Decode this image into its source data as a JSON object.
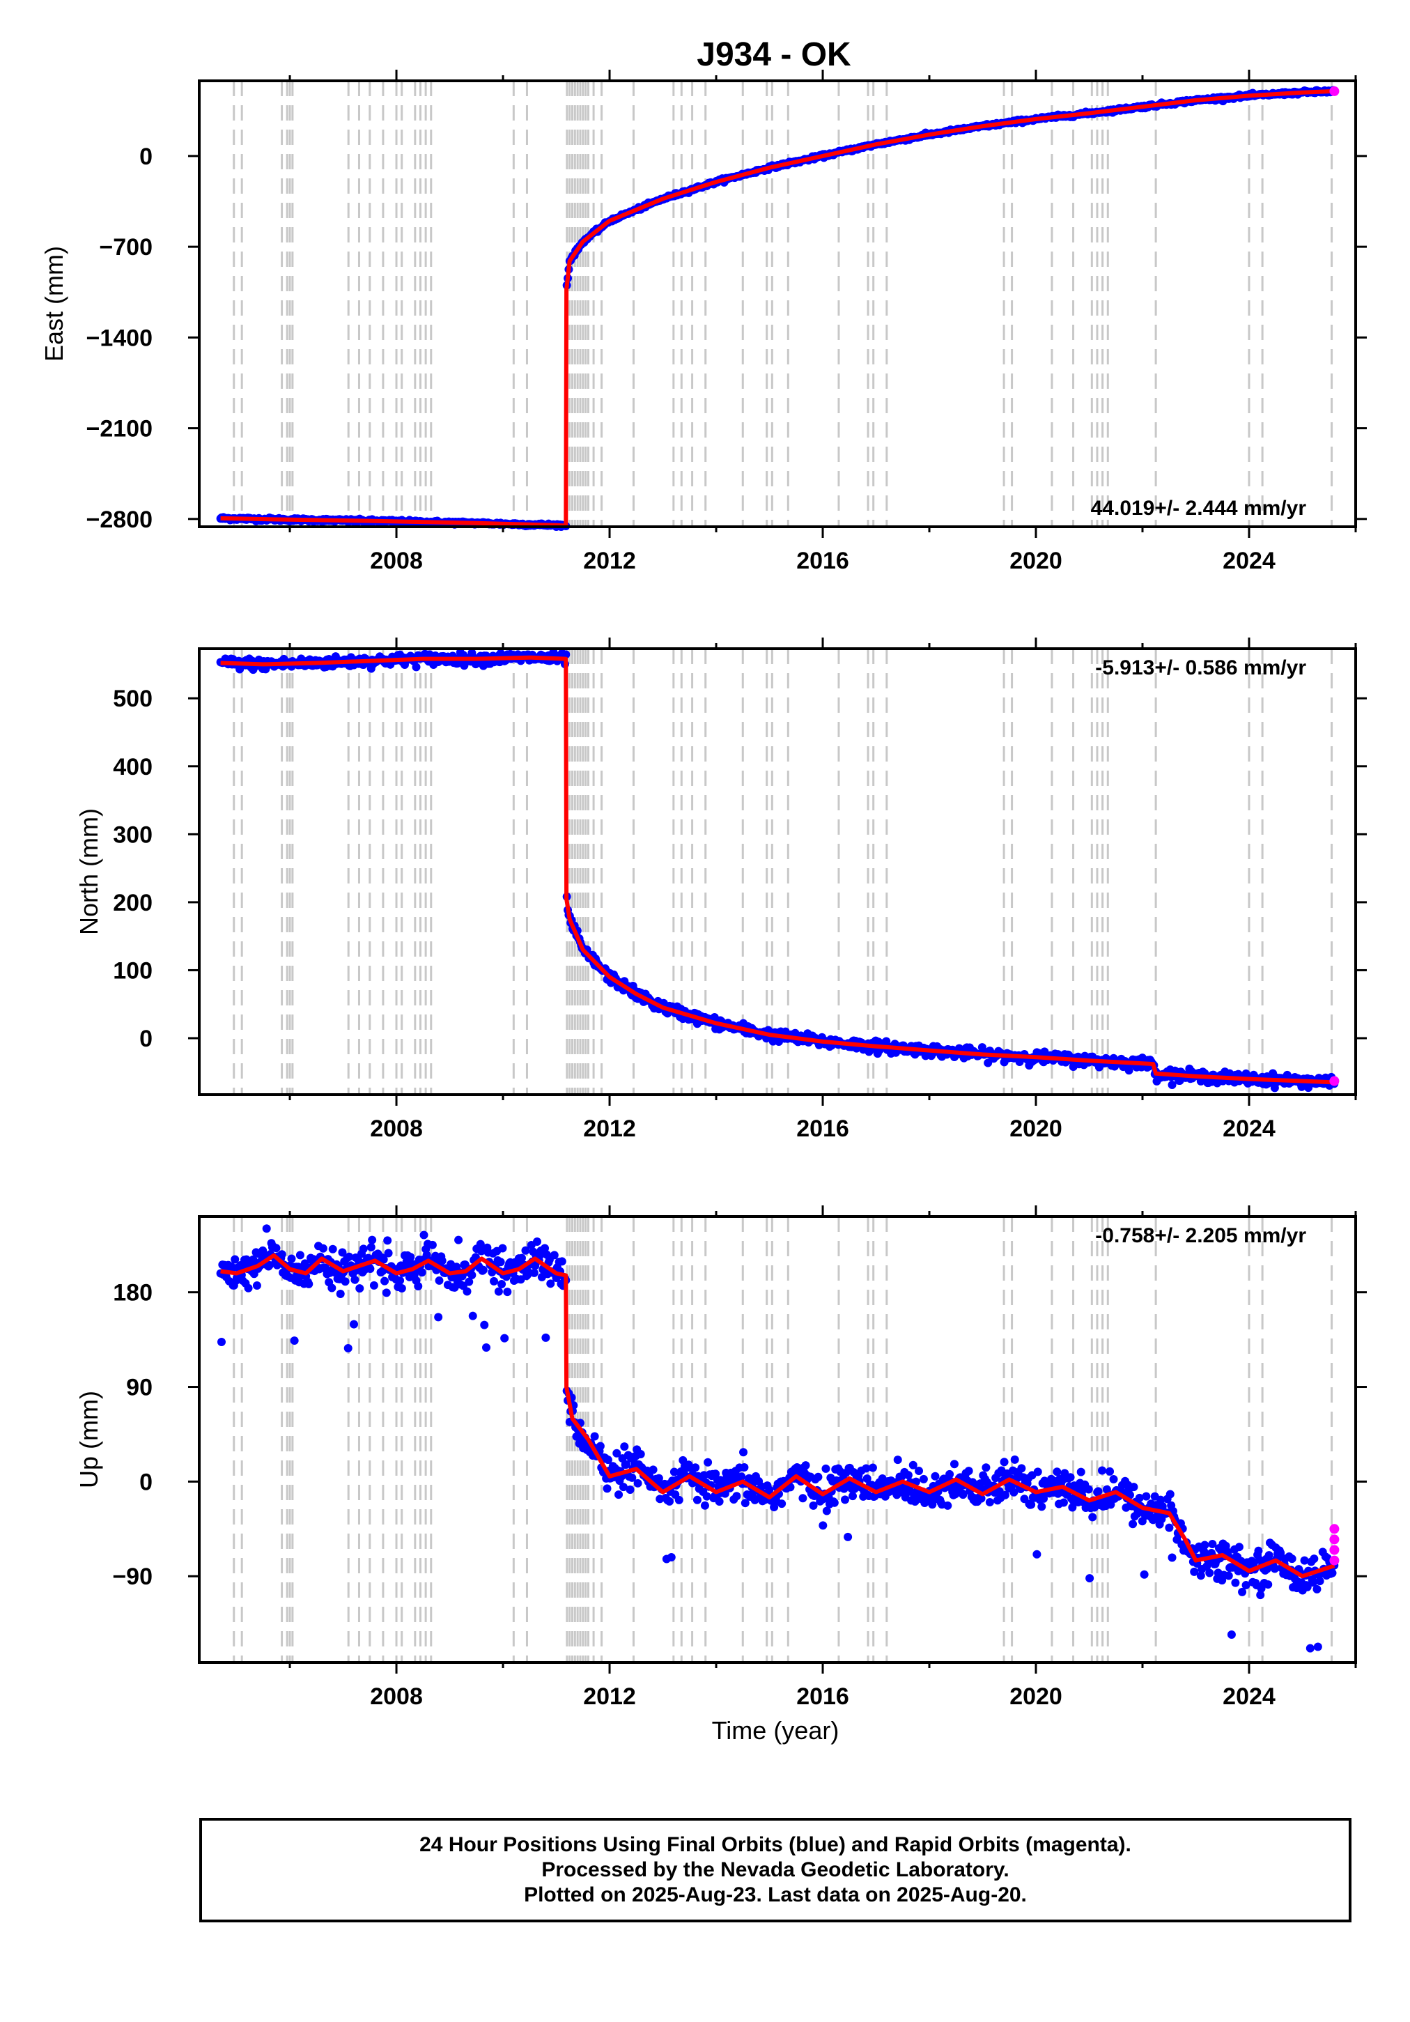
{
  "title": "J934 - OK",
  "x_axis_title": "Time (year)",
  "footer": {
    "line1": "24 Hour Positions Using Final Orbits (blue) and Rapid Orbits (magenta).",
    "line2": "Processed by the Nevada Geodetic Laboratory.",
    "line3": "Plotted on 2025-Aug-23. Last data on 2025-Aug-20."
  },
  "colors": {
    "final_orbits": "#0000ff",
    "rapid_orbits": "#ff00ff",
    "model": "#ff0000",
    "event_lines": "#c8c8c8"
  },
  "chart_data": [
    {
      "type": "scatter",
      "panel": "east",
      "ylabel": "East (mm)",
      "xlabel": "",
      "xlim": [
        2004.3,
        2026.0
      ],
      "ylim": [
        -2860,
        580
      ],
      "x_ticks": [
        2008,
        2012,
        2016,
        2020,
        2024
      ],
      "y_ticks": [
        0,
        -700,
        -1400,
        -2100,
        -2800
      ],
      "y_tick_labels": [
        "0",
        "−700",
        "−1400",
        "−2100",
        "−2800"
      ],
      "grid": false,
      "rate_annotation": "44.019+/- 2.444 mm/yr",
      "event_lines": [
        2004.95,
        2005.1,
        2005.85,
        2005.95,
        2006.0,
        2006.05,
        2007.1,
        2007.3,
        2007.5,
        2007.75,
        2008.0,
        2008.1,
        2008.35,
        2008.45,
        2008.55,
        2008.65,
        2010.2,
        2010.45,
        2011.2,
        2011.25,
        2011.3,
        2011.35,
        2011.4,
        2011.45,
        2011.5,
        2011.55,
        2011.6,
        2011.7,
        2011.85,
        2012.45,
        2013.2,
        2013.35,
        2013.55,
        2013.8,
        2014.5,
        2014.95,
        2015.05,
        2015.35,
        2016.3,
        2016.85,
        2016.95,
        2017.2,
        2019.4,
        2019.55,
        2020.3,
        2020.7,
        2021.05,
        2021.15,
        2021.25,
        2021.35,
        2022.25,
        2024.0,
        2024.25,
        2025.55
      ],
      "fit_knots": [
        [
          2004.7,
          -2795
        ],
        [
          2005.7,
          -2803
        ],
        [
          2007.5,
          -2815
        ],
        [
          2009.5,
          -2832
        ],
        [
          2011.0,
          -2848
        ],
        [
          2011.18,
          -2852
        ],
        [
          2011.19,
          -1030
        ],
        [
          2011.25,
          -810
        ],
        [
          2011.5,
          -660
        ],
        [
          2012.0,
          -500
        ],
        [
          2013.0,
          -330
        ],
        [
          2014.0,
          -200
        ],
        [
          2015.0,
          -90
        ],
        [
          2016.0,
          0
        ],
        [
          2017.0,
          90
        ],
        [
          2018.0,
          165
        ],
        [
          2019.0,
          230
        ],
        [
          2020.0,
          285
        ],
        [
          2021.0,
          330
        ],
        [
          2022.0,
          380
        ],
        [
          2023.0,
          430
        ],
        [
          2024.0,
          465
        ],
        [
          2025.0,
          490
        ],
        [
          2025.6,
          500
        ]
      ],
      "rapid_points": [
        [
          2025.6,
          500
        ]
      ]
    },
    {
      "type": "scatter",
      "panel": "north",
      "ylabel": "North (mm)",
      "xlabel": "",
      "xlim": [
        2004.3,
        2026.0
      ],
      "ylim": [
        -83,
        573
      ],
      "x_ticks": [
        2008,
        2012,
        2016,
        2020,
        2024
      ],
      "y_ticks": [
        500,
        400,
        300,
        200,
        100,
        0
      ],
      "y_tick_labels": [
        "500",
        "400",
        "300",
        "200",
        "100",
        "0"
      ],
      "grid": false,
      "rate_annotation": "-5.913+/- 0.586 mm/yr",
      "event_lines": [
        2004.95,
        2005.1,
        2005.85,
        2005.95,
        2006.0,
        2006.05,
        2007.1,
        2007.3,
        2007.5,
        2007.75,
        2008.0,
        2008.1,
        2008.35,
        2008.45,
        2008.55,
        2008.65,
        2010.2,
        2010.45,
        2011.2,
        2011.25,
        2011.3,
        2011.35,
        2011.4,
        2011.45,
        2011.5,
        2011.55,
        2011.6,
        2011.7,
        2011.85,
        2012.45,
        2013.2,
        2013.35,
        2013.55,
        2013.8,
        2014.5,
        2014.95,
        2015.05,
        2015.35,
        2016.3,
        2016.85,
        2016.95,
        2017.2,
        2019.4,
        2019.55,
        2020.3,
        2020.7,
        2021.05,
        2021.15,
        2021.25,
        2021.35,
        2022.25,
        2024.0,
        2024.25,
        2025.55
      ],
      "fit_knots": [
        [
          2004.7,
          552
        ],
        [
          2005.5,
          550
        ],
        [
          2006.5,
          552
        ],
        [
          2007.5,
          555
        ],
        [
          2008.5,
          558
        ],
        [
          2009.5,
          558
        ],
        [
          2010.5,
          560
        ],
        [
          2011.18,
          558
        ],
        [
          2011.19,
          205
        ],
        [
          2011.25,
          175
        ],
        [
          2011.5,
          130
        ],
        [
          2012.0,
          90
        ],
        [
          2012.5,
          65
        ],
        [
          2013.0,
          45
        ],
        [
          2014.0,
          22
        ],
        [
          2015.0,
          5
        ],
        [
          2016.0,
          -5
        ],
        [
          2017.0,
          -12
        ],
        [
          2018.0,
          -18
        ],
        [
          2019.0,
          -24
        ],
        [
          2020.0,
          -28
        ],
        [
          2021.0,
          -33
        ],
        [
          2022.2,
          -38
        ],
        [
          2022.25,
          -52
        ],
        [
          2023.0,
          -56
        ],
        [
          2024.0,
          -60
        ],
        [
          2025.0,
          -63
        ],
        [
          2025.6,
          -65
        ]
      ],
      "rapid_points": [
        [
          2025.6,
          -63
        ]
      ]
    },
    {
      "type": "scatter",
      "panel": "up",
      "ylabel": "Up (mm)",
      "xlabel": "Time (year)",
      "xlim": [
        2004.3,
        2026.0
      ],
      "ylim": [
        -172,
        252
      ],
      "x_ticks": [
        2008,
        2012,
        2016,
        2020,
        2024
      ],
      "y_ticks": [
        180,
        90,
        0,
        -90
      ],
      "y_tick_labels": [
        "180",
        "90",
        "0",
        "−90"
      ],
      "grid": false,
      "rate_annotation": "-0.758+/- 2.205 mm/yr",
      "event_lines": [
        2004.95,
        2005.1,
        2005.85,
        2005.95,
        2006.0,
        2006.05,
        2007.1,
        2007.3,
        2007.5,
        2007.75,
        2008.0,
        2008.1,
        2008.35,
        2008.45,
        2008.55,
        2008.65,
        2010.2,
        2010.45,
        2011.2,
        2011.25,
        2011.3,
        2011.35,
        2011.4,
        2011.45,
        2011.5,
        2011.55,
        2011.6,
        2011.7,
        2011.85,
        2012.45,
        2013.2,
        2013.35,
        2013.55,
        2013.8,
        2014.5,
        2014.95,
        2015.05,
        2015.35,
        2016.3,
        2016.85,
        2016.95,
        2017.2,
        2019.4,
        2019.55,
        2020.3,
        2020.7,
        2021.05,
        2021.15,
        2021.25,
        2021.35,
        2022.25,
        2024.0,
        2024.25,
        2025.55
      ],
      "fit_knots": [
        [
          2004.7,
          200
        ],
        [
          2005.0,
          198
        ],
        [
          2005.4,
          205
        ],
        [
          2005.7,
          215
        ],
        [
          2006.0,
          202
        ],
        [
          2006.3,
          198
        ],
        [
          2006.6,
          212
        ],
        [
          2007.0,
          200
        ],
        [
          2007.3,
          205
        ],
        [
          2007.6,
          210
        ],
        [
          2008.0,
          198
        ],
        [
          2008.3,
          202
        ],
        [
          2008.6,
          210
        ],
        [
          2009.0,
          198
        ],
        [
          2009.3,
          200
        ],
        [
          2009.6,
          212
        ],
        [
          2010.0,
          198
        ],
        [
          2010.3,
          202
        ],
        [
          2010.6,
          212
        ],
        [
          2011.0,
          198
        ],
        [
          2011.18,
          196
        ],
        [
          2011.19,
          90
        ],
        [
          2011.3,
          60
        ],
        [
          2011.6,
          40
        ],
        [
          2012.0,
          5
        ],
        [
          2012.5,
          12
        ],
        [
          2013.0,
          -10
        ],
        [
          2013.5,
          5
        ],
        [
          2014.0,
          -10
        ],
        [
          2014.5,
          0
        ],
        [
          2015.0,
          -15
        ],
        [
          2015.5,
          5
        ],
        [
          2016.0,
          -12
        ],
        [
          2016.5,
          3
        ],
        [
          2017.0,
          -10
        ],
        [
          2017.5,
          0
        ],
        [
          2018.0,
          -10
        ],
        [
          2018.5,
          2
        ],
        [
          2019.0,
          -12
        ],
        [
          2019.5,
          2
        ],
        [
          2020.0,
          -10
        ],
        [
          2020.5,
          -5
        ],
        [
          2021.0,
          -18
        ],
        [
          2021.5,
          -10
        ],
        [
          2022.0,
          -25
        ],
        [
          2022.5,
          -30
        ],
        [
          2022.8,
          -55
        ],
        [
          2023.0,
          -75
        ],
        [
          2023.5,
          -70
        ],
        [
          2024.0,
          -85
        ],
        [
          2024.5,
          -75
        ],
        [
          2025.0,
          -90
        ],
        [
          2025.6,
          -80
        ]
      ],
      "rapid_points": [
        [
          2025.6,
          -45
        ],
        [
          2025.6,
          -55
        ],
        [
          2025.6,
          -65
        ],
        [
          2025.6,
          -75
        ]
      ]
    }
  ]
}
